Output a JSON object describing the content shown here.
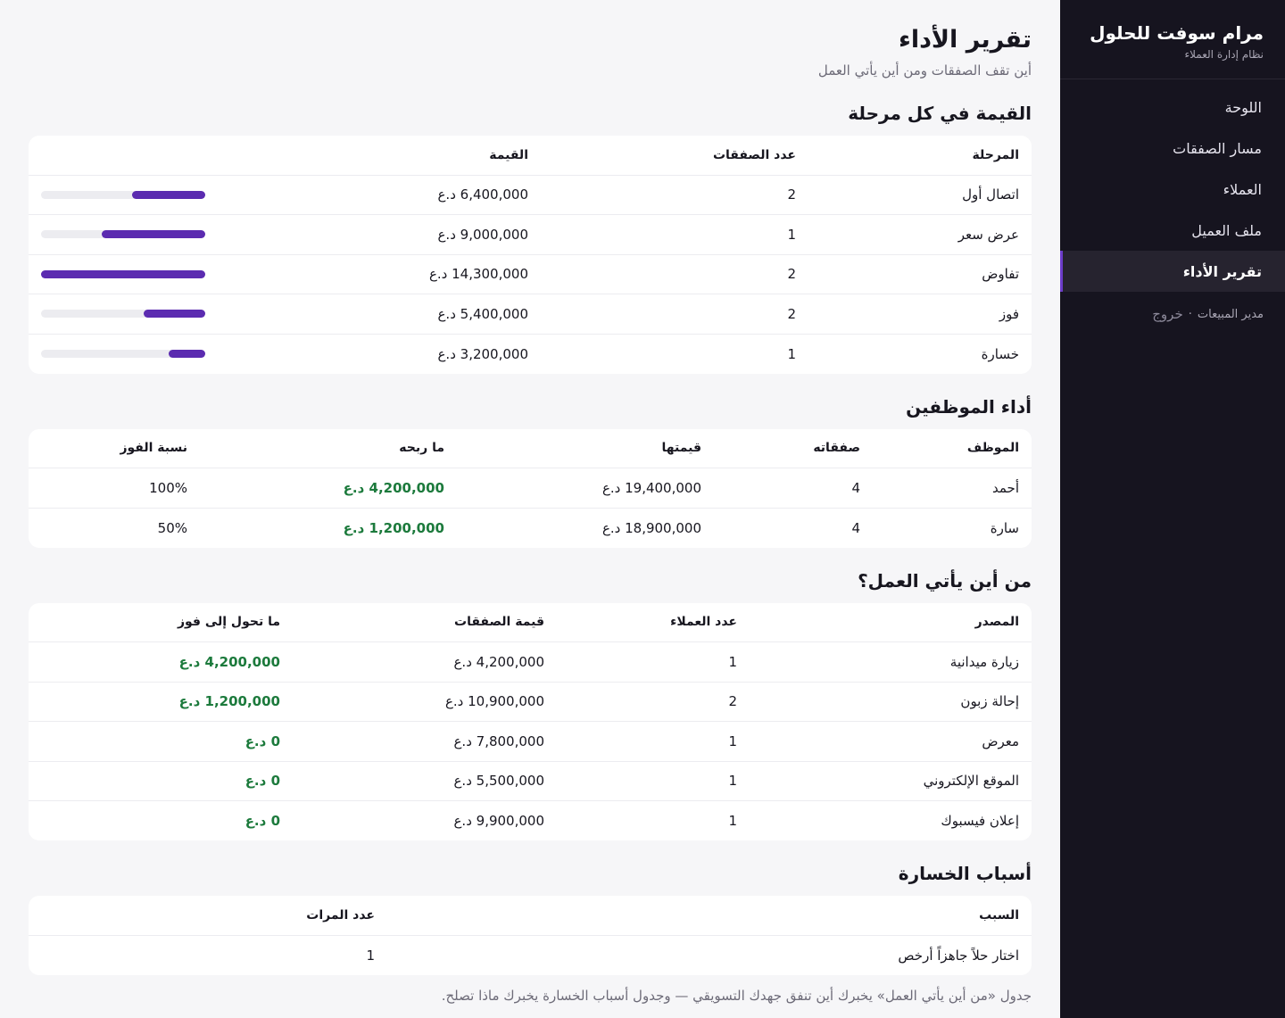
{
  "sidebar": {
    "brand_title": "مرام سوفت للحلول",
    "brand_sub": "نظام إدارة العملاء",
    "items": [
      {
        "label": "اللوحة",
        "active": false
      },
      {
        "label": "مسار الصفقات",
        "active": false
      },
      {
        "label": "العملاء",
        "active": false
      },
      {
        "label": "ملف العميل",
        "active": false
      },
      {
        "label": "تقرير الأداء",
        "active": true
      }
    ],
    "user_role": "مدير المبيعات",
    "separator": "·",
    "logout": "خروج"
  },
  "header": {
    "title": "تقرير الأداء",
    "subtitle": "أين تقف الصفقات ومن أين يأتي العمل"
  },
  "stages": {
    "title": "القيمة في كل مرحلة",
    "columns": [
      "المرحلة",
      "عدد الصفقات",
      "القيمة"
    ],
    "rows": [
      {
        "stage": "اتصال أول",
        "count": "2",
        "value": "6,400,000 د.ع",
        "amount": 6400000
      },
      {
        "stage": "عرض سعر",
        "count": "1",
        "value": "9,000,000 د.ع",
        "amount": 9000000
      },
      {
        "stage": "تفاوض",
        "count": "2",
        "value": "14,300,000 د.ع",
        "amount": 14300000
      },
      {
        "stage": "فوز",
        "count": "2",
        "value": "5,400,000 د.ع",
        "amount": 5400000
      },
      {
        "stage": "خسارة",
        "count": "1",
        "value": "3,200,000 د.ع",
        "amount": 3200000
      }
    ],
    "max_amount": 14300000,
    "bar_color": "#5b2bb0"
  },
  "employees": {
    "title": "أداء الموظفين",
    "columns": [
      "الموظف",
      "صفقاته",
      "قيمتها",
      "ما ربحه",
      "نسبة الفوز"
    ],
    "rows": [
      {
        "name": "أحمد",
        "deals": "4",
        "value": "19,400,000 د.ع",
        "won": "4,200,000 د.ع",
        "rate": "100%"
      },
      {
        "name": "سارة",
        "deals": "4",
        "value": "18,900,000 د.ع",
        "won": "1,200,000 د.ع",
        "rate": "50%"
      }
    ]
  },
  "sources": {
    "title": "من أين يأتي العمل؟",
    "columns": [
      "المصدر",
      "عدد العملاء",
      "قيمة الصفقات",
      "ما تحول إلى فوز"
    ],
    "rows": [
      {
        "source": "زيارة ميدانية",
        "clients": "1",
        "value": "4,200,000 د.ع",
        "won": "4,200,000 د.ع"
      },
      {
        "source": "إحالة زبون",
        "clients": "2",
        "value": "10,900,000 د.ع",
        "won": "1,200,000 د.ع"
      },
      {
        "source": "معرض",
        "clients": "1",
        "value": "7,800,000 د.ع",
        "won": "0 د.ع"
      },
      {
        "source": "الموقع الإلكتروني",
        "clients": "1",
        "value": "5,500,000 د.ع",
        "won": "0 د.ع"
      },
      {
        "source": "إعلان فيسبوك",
        "clients": "1",
        "value": "9,900,000 د.ع",
        "won": "0 د.ع"
      }
    ]
  },
  "losses": {
    "title": "أسباب الخسارة",
    "columns": [
      "السبب",
      "عدد المرات"
    ],
    "rows": [
      {
        "reason": "اختار حلاً جاهزاً أرخص",
        "times": "1"
      }
    ]
  },
  "footer_note": "جدول «من أين يأتي العمل» يخبرك أين تنفق جهدك التسويقي — وجدول أسباب الخسارة يخبرك ماذا تصلح.",
  "colors": {
    "accent": "#5b2bb0",
    "win": "#1c7a3c",
    "sidebar_bg": "#16141f"
  }
}
